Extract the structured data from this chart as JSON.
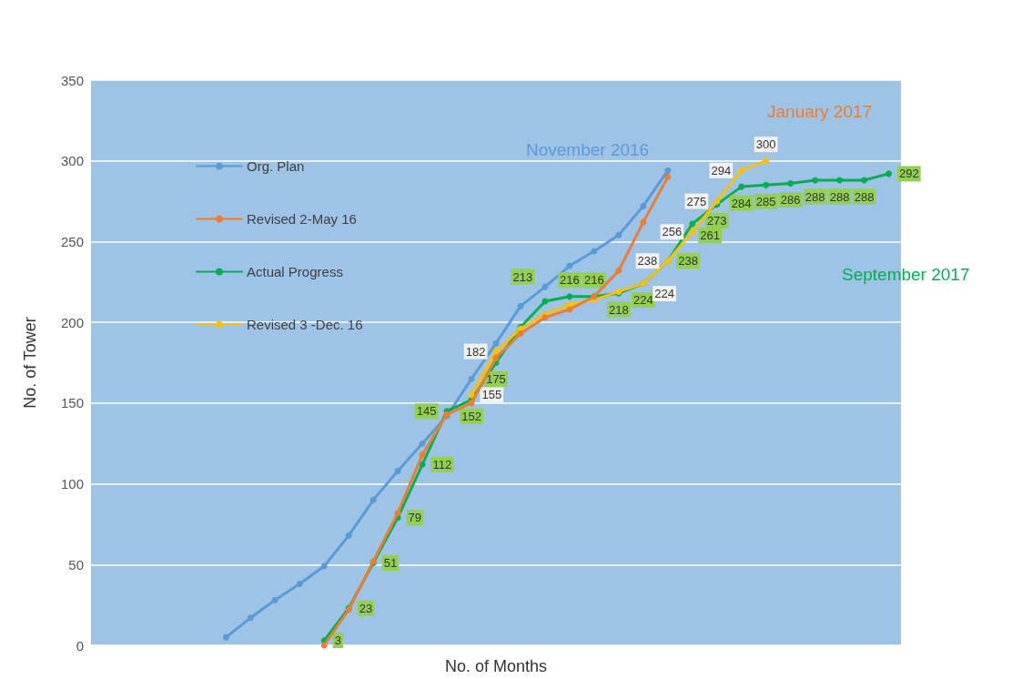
{
  "chart_data": {
    "type": "line",
    "xlabel": "No. of Months",
    "ylabel": "No. of Tower",
    "categories": [
      null,
      null,
      null,
      null,
      null,
      null,
      null,
      null,
      null,
      null,
      null,
      null,
      null,
      null,
      null,
      null,
      null,
      null,
      null,
      null,
      null,
      null,
      null,
      null,
      null,
      null,
      null,
      null,
      null,
      null,
      null,
      null,
      null
    ],
    "series": [
      {
        "name": "Org. Plan",
        "color": "#5b9bd5",
        "values": [
          null,
          null,
          null,
          null,
          null,
          5,
          17,
          28,
          38,
          49,
          68,
          90,
          108,
          125,
          142,
          165,
          187,
          210,
          222,
          235,
          244,
          254,
          272,
          294,
          null,
          null,
          null,
          null,
          null,
          null,
          null,
          null,
          null
        ]
      },
      {
        "name": "Revised 2-May 16",
        "color": "#ed7d31",
        "values": [
          null,
          null,
          null,
          null,
          null,
          null,
          null,
          null,
          null,
          0,
          22,
          52,
          82,
          118,
          143,
          150,
          178,
          193,
          203,
          208,
          216,
          232,
          262,
          290,
          null,
          null,
          null,
          null,
          null,
          null,
          null,
          null,
          null
        ]
      },
      {
        "name": "Actual Progress",
        "color": "#00b050",
        "values": [
          null,
          null,
          null,
          null,
          null,
          null,
          null,
          null,
          null,
          3,
          23,
          51,
          79,
          112,
          145,
          152,
          175,
          197,
          213,
          216,
          216,
          218,
          224,
          238,
          261,
          273,
          284,
          285,
          286,
          288,
          288,
          288,
          292
        ],
        "value_labels": [
          null,
          null,
          null,
          null,
          null,
          null,
          null,
          null,
          null,
          "3",
          "23",
          "51",
          "79",
          "112",
          "145",
          "152",
          "175",
          null,
          "213",
          "216",
          "216",
          "218",
          "224",
          "238",
          "261",
          "273",
          "284",
          "285",
          "286",
          "288",
          "288",
          "288",
          "292"
        ]
      },
      {
        "name": "Revised 3 -Dec. 16",
        "color": "#ffc000",
        "values": [
          null,
          null,
          null,
          null,
          null,
          null,
          null,
          null,
          null,
          null,
          null,
          null,
          null,
          null,
          null,
          155,
          182,
          196,
          205,
          211,
          214,
          219,
          224,
          238,
          256,
          275,
          294,
          300,
          null,
          null,
          null,
          null,
          null
        ],
        "value_labels": [
          null,
          null,
          null,
          null,
          null,
          null,
          null,
          null,
          null,
          null,
          null,
          null,
          null,
          null,
          null,
          "155",
          "182",
          null,
          null,
          null,
          null,
          null,
          "224",
          "238",
          "256",
          "275",
          "294",
          "300",
          null,
          null,
          null,
          null,
          null
        ]
      }
    ],
    "ylim": [
      0,
      350
    ],
    "yticks": [
      0,
      50,
      100,
      150,
      200,
      250,
      300,
      350
    ],
    "grid": "y",
    "legend": "top left",
    "marker": "circle",
    "line_style": "solid",
    "annotations": [
      "November 2016",
      "January 2017",
      "September 2017"
    ]
  }
}
